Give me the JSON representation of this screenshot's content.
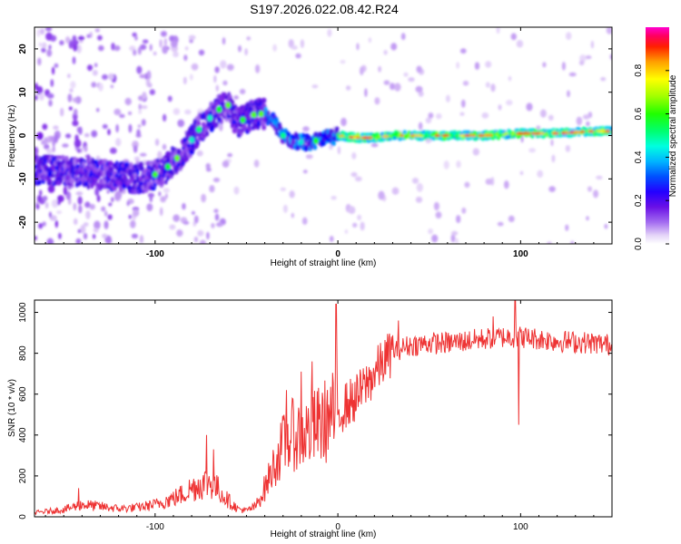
{
  "title": "S197.2026.022.08.42.R24",
  "chart_data": [
    {
      "type": "heatmap",
      "name": "spectrogram",
      "xlabel": "Height of straight line (km)",
      "ylabel": "Frequency (Hz)",
      "xlim": [
        -166,
        150
      ],
      "ylim": [
        -25,
        25
      ],
      "xticks": [
        -100,
        0,
        100
      ],
      "yticks": [
        -20,
        -10,
        0,
        10,
        20
      ],
      "colorbar": {
        "label": "Normalized spectral amplitude",
        "range": [
          0,
          1
        ],
        "ticks": [
          0.0,
          0.2,
          0.4,
          0.6,
          0.8
        ],
        "colors": [
          "#ffffff",
          "#d2b4f5",
          "#a36cf0",
          "#7a1fe6",
          "#4d10e0",
          "#0000ff",
          "#0077ff",
          "#00c8ff",
          "#00ffb4",
          "#00ff00",
          "#96ff00",
          "#ffff00",
          "#ffb400",
          "#ff4b00",
          "#ff0000",
          "#ff00c8"
        ]
      },
      "ridge": {
        "x": [
          -150,
          -140,
          -130,
          -120,
          -110,
          -100,
          -95,
          -90,
          -85,
          -80,
          -75,
          -70,
          -65,
          -60,
          -55,
          -50,
          -45,
          -40,
          -35,
          -30,
          -25,
          -20,
          -15,
          -10,
          -5,
          0,
          10,
          20,
          30,
          40,
          60,
          80,
          100,
          120,
          140,
          150
        ],
        "y": [
          -8,
          -8.5,
          -9,
          -9.5,
          -10,
          -9,
          -8,
          -6,
          -4,
          -1,
          2,
          4,
          6,
          7,
          3,
          4,
          5,
          5,
          3,
          0,
          -1,
          -1.5,
          -1.5,
          -1,
          -0.5,
          0,
          -0.5,
          -0.5,
          0,
          0,
          0,
          0,
          0.5,
          0.5,
          1,
          1
        ]
      }
    },
    {
      "type": "line",
      "name": "snr",
      "xlabel": "Height of straight line (km)",
      "ylabel": "SNR (10 * v/v)",
      "xlim": [
        -166,
        150
      ],
      "ylim": [
        0,
        1060
      ],
      "xticks": [
        -100,
        0,
        100
      ],
      "yticks": [
        0,
        200,
        400,
        600,
        800,
        1000
      ],
      "color": "#ee3333",
      "envelope": {
        "x": [
          -166,
          -150,
          -140,
          -130,
          -120,
          -110,
          -100,
          -90,
          -85,
          -80,
          -75,
          -70,
          -65,
          -60,
          -55,
          -50,
          -45,
          -40,
          -35,
          -30,
          -25,
          -20,
          -15,
          -10,
          -5,
          -2,
          0,
          5,
          10,
          15,
          20,
          25,
          30,
          40,
          50,
          60,
          70,
          80,
          90,
          100,
          110,
          120,
          130,
          140,
          150
        ],
        "y": [
          20,
          35,
          60,
          50,
          40,
          45,
          60,
          90,
          110,
          140,
          160,
          170,
          130,
          80,
          40,
          30,
          50,
          140,
          250,
          350,
          400,
          400,
          420,
          450,
          480,
          500,
          510,
          550,
          580,
          640,
          700,
          760,
          810,
          840,
          850,
          850,
          860,
          870,
          880,
          880,
          870,
          860,
          855,
          850,
          840
        ]
      },
      "spikes": [
        {
          "x": -142,
          "y": 140
        },
        {
          "x": -72,
          "y": 400
        },
        {
          "x": -68,
          "y": 330
        },
        {
          "x": -28,
          "y": 620
        },
        {
          "x": -20,
          "y": 710
        },
        {
          "x": -14,
          "y": 760
        },
        {
          "x": -1,
          "y": 1040
        },
        {
          "x": 33,
          "y": 960
        },
        {
          "x": 85,
          "y": 980
        },
        {
          "x": 97,
          "y": 1060
        },
        {
          "x": 99,
          "y": 450
        }
      ]
    }
  ]
}
